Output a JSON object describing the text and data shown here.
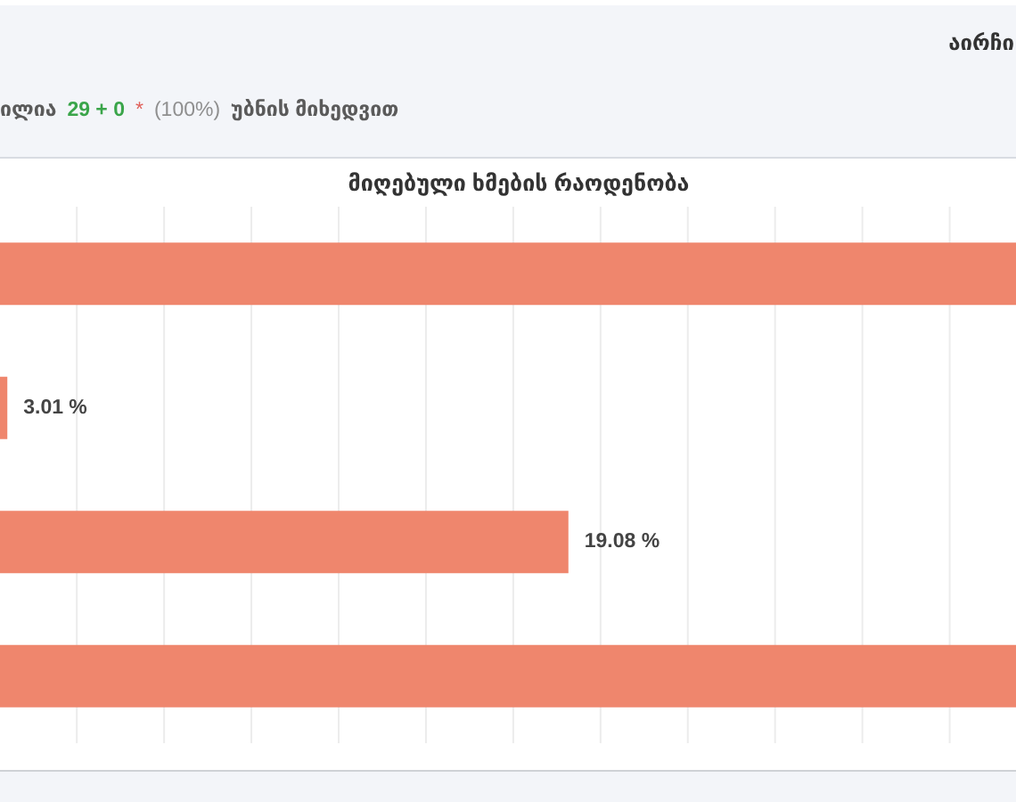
{
  "chart_data": {
    "type": "bar",
    "orientation": "horizontal",
    "title": "მიღებული ხმების რაოდენობა",
    "annotations": [
      "აირჩი",
      "ილია",
      "29 + 0",
      "*",
      "(100%)",
      "უბნის მიხედვით"
    ],
    "categories": [
      null,
      null,
      null,
      null
    ],
    "values": [
      31.9,
      3.01,
      19.08,
      31.9
    ],
    "value_labels": [
      null,
      "3.01 %",
      "19.08 %",
      null
    ],
    "color": "#ef866d",
    "xlim": [
      2.8,
      31.9
    ],
    "xticks": [
      {
        "value": 5,
        "label": null
      },
      {
        "value": 7.5,
        "label": null
      },
      {
        "value": 10,
        "label": null
      },
      {
        "value": 12.5,
        "label": null
      },
      {
        "value": 15,
        "label": null
      },
      {
        "value": 17.5,
        "label": null
      },
      {
        "value": 20,
        "label": null
      },
      {
        "value": 22.5,
        "label": null
      },
      {
        "value": 25,
        "label": null
      },
      {
        "value": 27.5,
        "label": null
      },
      {
        "value": 30,
        "label": null
      }
    ],
    "grid": "x"
  }
}
